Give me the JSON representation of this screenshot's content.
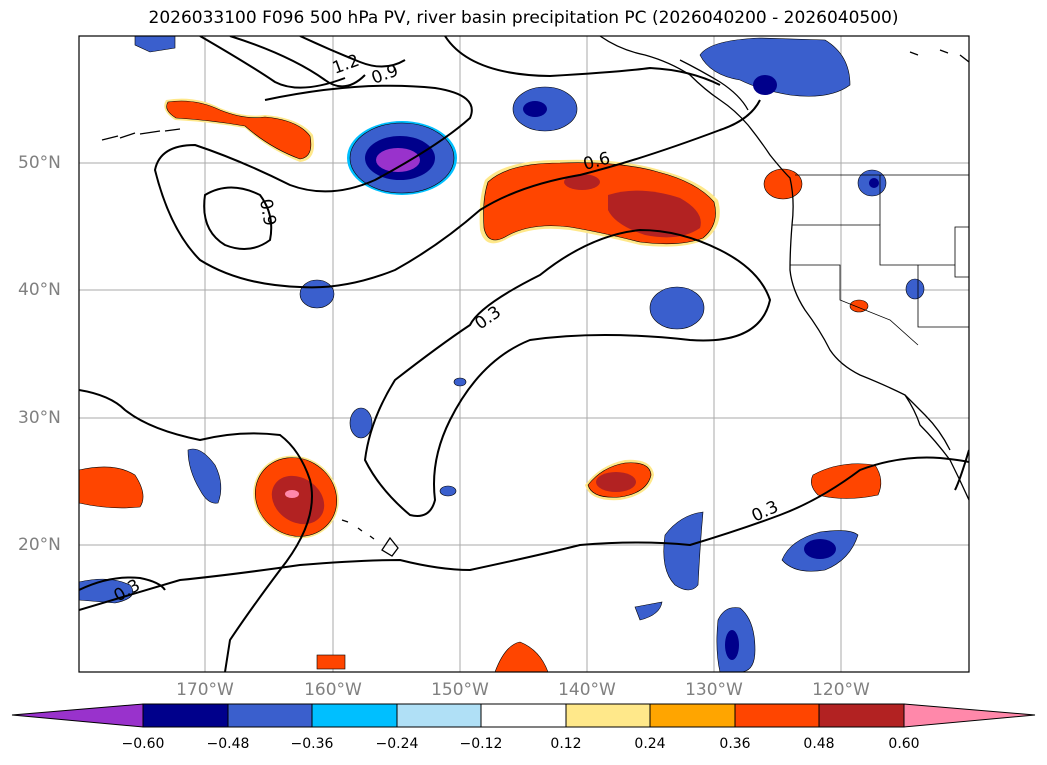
{
  "title": "2026033100 F096 500 hPa PV, river basin precipitation PC (2026040200 - 2026040500)",
  "map": {
    "lat_labels": [
      "50°N",
      "40°N",
      "30°N",
      "20°N"
    ],
    "lon_labels": [
      "170°W",
      "160°W",
      "150°W",
      "140°W",
      "130°W",
      "120°W"
    ],
    "contour_labels": [
      "1.2",
      "0.9",
      "0.9",
      "0.6",
      "0.3",
      "0.3",
      "0.3"
    ],
    "contour_color": "#000000",
    "gridline_color": "#aaaaaa",
    "coastline_color": "#000000"
  },
  "colorbar": {
    "colors": [
      "#9932cc",
      "#00008b",
      "#3a5fcd",
      "#00bfff",
      "#b0e0f6",
      "#ffffff",
      "#ffe88a",
      "#ffa500",
      "#ff4500",
      "#b22222",
      "#ff88aa"
    ],
    "tick_labels": [
      "−0.60",
      "−0.48",
      "−0.36",
      "−0.24",
      "−0.12",
      "0.12",
      "0.24",
      "0.36",
      "0.48",
      "0.60"
    ]
  }
}
